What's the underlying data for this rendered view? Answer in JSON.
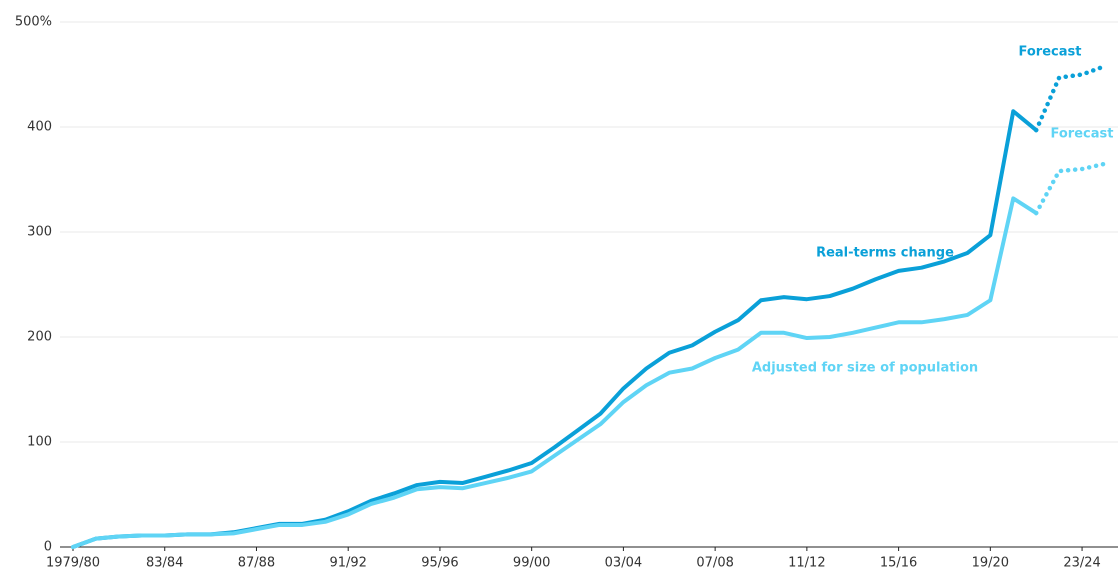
{
  "chart_data": {
    "type": "line",
    "categories": [
      "1979/80",
      null,
      null,
      null,
      "83/84",
      null,
      null,
      null,
      "87/88",
      null,
      null,
      null,
      "91/92",
      null,
      null,
      null,
      "95/96",
      null,
      null,
      null,
      "99/00",
      null,
      null,
      null,
      "03/04",
      null,
      null,
      null,
      "07/08",
      null,
      null,
      null,
      "11/12",
      null,
      null,
      null,
      "15/16",
      null,
      null,
      null,
      "19/20",
      null,
      null,
      null,
      "23/24",
      null
    ],
    "series": [
      {
        "name": "Real-terms change",
        "color": "#0aa0d8",
        "forecast_label": "Forecast",
        "forecast_start_index": 42,
        "values": [
          0,
          8,
          10,
          11,
          11,
          12,
          12,
          14,
          18,
          22,
          22,
          26,
          34,
          44,
          51,
          59,
          62,
          61,
          67,
          73,
          80,
          95,
          111,
          127,
          151,
          170,
          185,
          192,
          205,
          216,
          235,
          238,
          236,
          239,
          246,
          255,
          263,
          266,
          272,
          280,
          297,
          415,
          397,
          447,
          450,
          458
        ]
      },
      {
        "name": "Adjusted for size of population",
        "color": "#5fd4f5",
        "forecast_label": "Forecast",
        "forecast_start_index": 42,
        "values": [
          0,
          8,
          10,
          11,
          11,
          12,
          12,
          13,
          17,
          21,
          21,
          24,
          31,
          41,
          47,
          55,
          57,
          56,
          61,
          66,
          72,
          87,
          102,
          117,
          138,
          154,
          166,
          170,
          180,
          188,
          204,
          204,
          199,
          200,
          204,
          209,
          214,
          214,
          217,
          221,
          235,
          332,
          318,
          358,
          360,
          365
        ]
      }
    ],
    "ylim": [
      0,
      500
    ],
    "yticks": [
      0,
      100,
      200,
      300,
      400,
      {
        "value": 500,
        "label": "500%"
      }
    ],
    "grid": true
  }
}
